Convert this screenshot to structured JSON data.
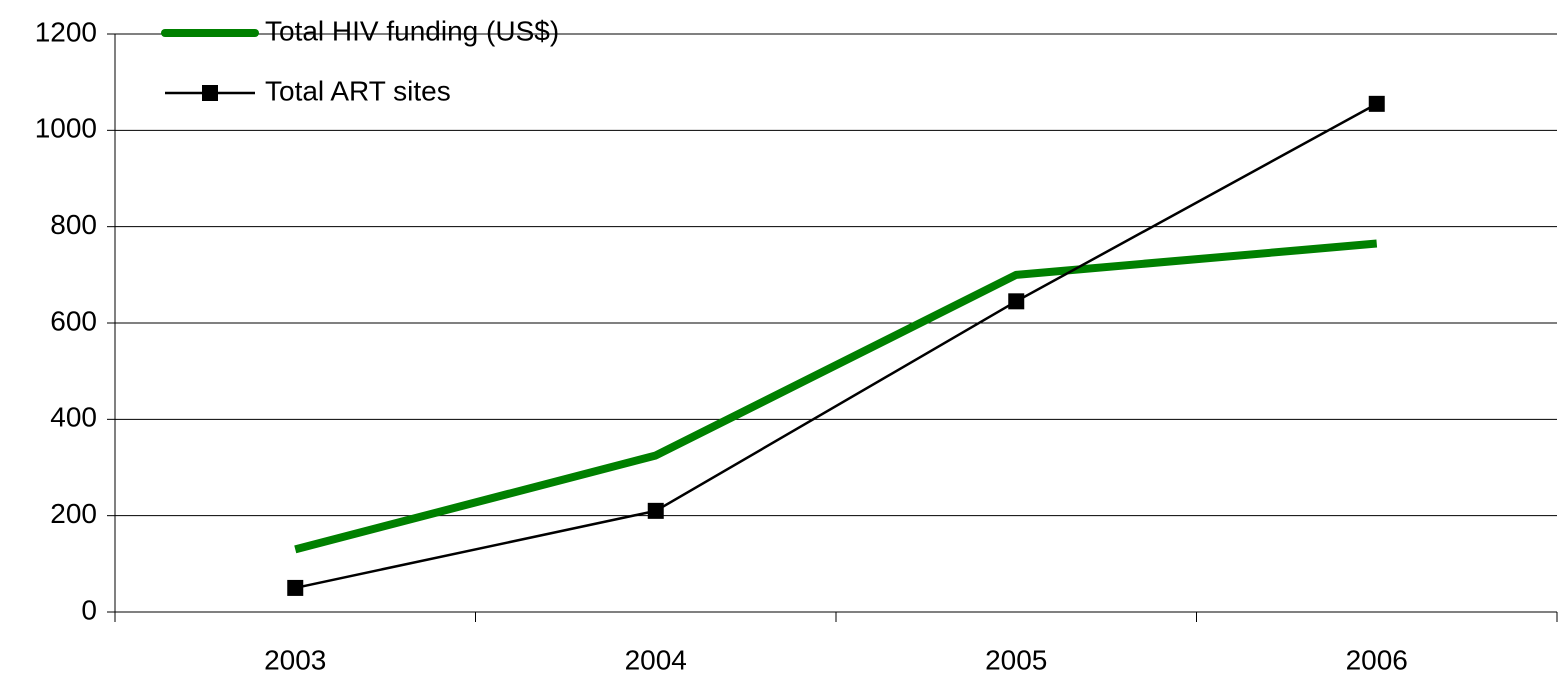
{
  "chart_data": {
    "type": "line",
    "categories": [
      "2003",
      "2004",
      "2005",
      "2006"
    ],
    "series": [
      {
        "name": "Total HIV funding (US$)",
        "color": "#008000",
        "values": [
          130,
          325,
          700,
          765
        ]
      },
      {
        "name": "Total ART sites",
        "color": "#000000",
        "values": [
          50,
          210,
          645,
          1055
        ]
      }
    ],
    "ylim": [
      0,
      1200
    ],
    "yticks": [
      0,
      200,
      400,
      600,
      800,
      1000,
      1200
    ],
    "grid": true,
    "legend": "top-left"
  }
}
